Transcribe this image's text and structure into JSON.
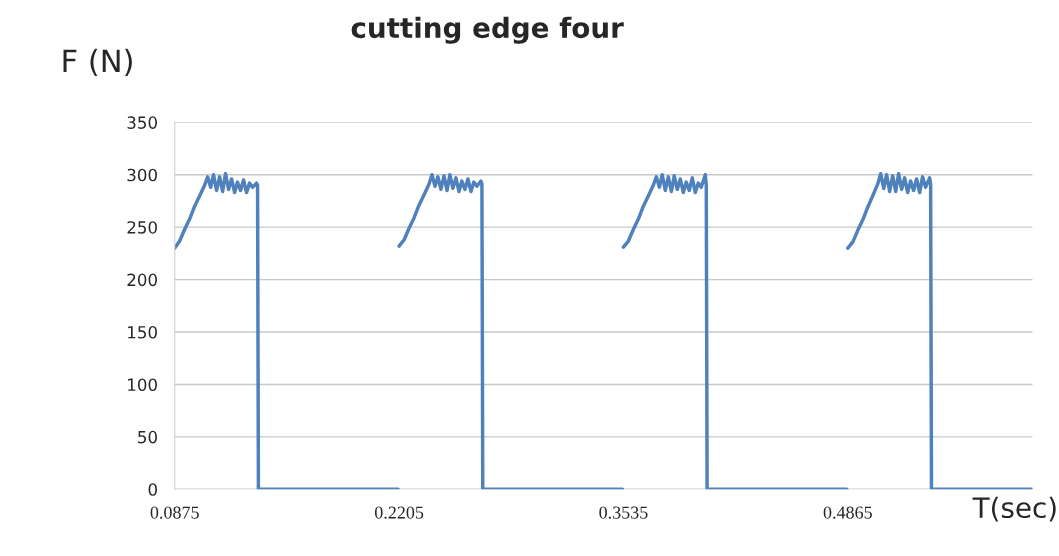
{
  "chart_data": {
    "type": "line",
    "title": "cutting edge four",
    "xlabel": "T(sec)",
    "ylabel": "F (N)",
    "xlim": [
      0.0875,
      0.596
    ],
    "xticks": [
      0.0875,
      0.2205,
      0.3535,
      0.4865
    ],
    "ylim": [
      0,
      350
    ],
    "yticks": [
      0,
      50,
      100,
      150,
      200,
      250,
      300,
      350
    ],
    "grid": "y",
    "legend": false,
    "series": [
      {
        "color": "#4f81bd",
        "x": [
          0.0875,
          0.0905,
          0.0934,
          0.0964,
          0.0993,
          0.1023,
          0.1052,
          0.107,
          0.1088,
          0.1105,
          0.1123,
          0.1141,
          0.1159,
          0.1176,
          0.1194,
          0.1212,
          0.123,
          0.1247,
          0.1265,
          0.1283,
          0.1301,
          0.1318,
          0.1336,
          0.136,
          0.1366,
          0.1371,
          0.2199,
          0.2202,
          0.2205,
          0.2235,
          0.2264,
          0.2294,
          0.2323,
          0.2353,
          0.2382,
          0.24,
          0.2418,
          0.2435,
          0.2453,
          0.2471,
          0.2489,
          0.2506,
          0.2524,
          0.2542,
          0.256,
          0.2577,
          0.2595,
          0.2613,
          0.2631,
          0.2648,
          0.2666,
          0.269,
          0.2696,
          0.2701,
          0.3529,
          0.3532,
          0.3535,
          0.3565,
          0.3594,
          0.3624,
          0.3653,
          0.3683,
          0.3712,
          0.373,
          0.3748,
          0.3765,
          0.3783,
          0.3801,
          0.3819,
          0.3836,
          0.3854,
          0.3872,
          0.389,
          0.3907,
          0.3925,
          0.3943,
          0.3961,
          0.3978,
          0.3996,
          0.402,
          0.4026,
          0.4031,
          0.4859,
          0.4862,
          0.4865,
          0.4895,
          0.4924,
          0.4954,
          0.4983,
          0.5013,
          0.5042,
          0.506,
          0.5078,
          0.5095,
          0.5113,
          0.5131,
          0.5149,
          0.5166,
          0.5184,
          0.5202,
          0.522,
          0.5237,
          0.5255,
          0.5273,
          0.5291,
          0.5308,
          0.5326,
          0.535,
          0.5356,
          0.5361,
          0.5958
        ],
        "values": [
          230,
          237,
          248,
          258,
          270,
          280,
          290,
          298,
          288,
          300,
          285,
          298,
          284,
          301,
          286,
          296,
          283,
          293,
          285,
          295,
          283,
          292,
          288,
          292,
          290,
          0,
          0,
          null,
          232,
          238,
          249,
          259,
          271,
          281,
          291,
          300,
          289,
          298,
          286,
          299,
          285,
          300,
          287,
          297,
          284,
          294,
          286,
          296,
          284,
          293,
          289,
          294,
          291,
          0,
          0,
          null,
          231,
          237,
          248,
          258,
          270,
          280,
          290,
          298,
          288,
          300,
          285,
          298,
          284,
          299,
          286,
          296,
          283,
          293,
          285,
          297,
          283,
          292,
          288,
          300,
          290,
          0,
          0,
          null,
          230,
          236,
          247,
          257,
          269,
          280,
          291,
          301,
          287,
          300,
          284,
          299,
          284,
          301,
          286,
          297,
          283,
          294,
          285,
          296,
          283,
          298,
          288,
          297,
          291,
          0,
          0
        ]
      }
    ]
  }
}
